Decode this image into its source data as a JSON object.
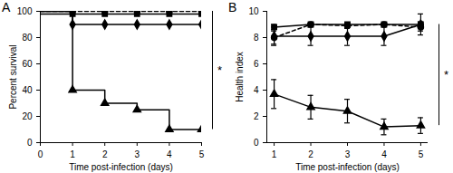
{
  "chart_data": [
    {
      "type": "step",
      "title": "A",
      "x": [
        0,
        1,
        2,
        3,
        4,
        5
      ],
      "xlim": [
        0,
        5
      ],
      "xticks": [
        0,
        1,
        2,
        3,
        4,
        5
      ],
      "ylim": [
        0,
        100
      ],
      "yticks": [
        0,
        20,
        40,
        60,
        80,
        100
      ],
      "x_label": "Time post-infection (days)",
      "y_label": "Percent survival",
      "annotations": [
        {
          "text": "*"
        }
      ],
      "series": [
        {
          "color": "#000000",
          "marker": "square",
          "line_style": "solid",
          "values": [
            98,
            98,
            98,
            98,
            98,
            98
          ]
        },
        {
          "color": "#000000",
          "marker": "circle",
          "line_style": "dashed",
          "values": [
            100,
            100,
            100,
            100,
            100,
            100
          ]
        },
        {
          "color": "#000000",
          "marker": "diamond",
          "line_style": "solid",
          "values": [
            100,
            90,
            90,
            90,
            90,
            90
          ]
        },
        {
          "color": "#000000",
          "marker": "triangle",
          "line_style": "solid",
          "values": [
            100,
            40,
            30,
            25,
            10,
            10
          ]
        }
      ]
    },
    {
      "type": "line",
      "title": "B",
      "x": [
        1,
        2,
        3,
        4,
        5
      ],
      "xlim": [
        0.8,
        5.2
      ],
      "xticks": [
        1,
        2,
        3,
        4,
        5
      ],
      "ylim": [
        0,
        10
      ],
      "yticks": [
        0,
        2,
        4,
        6,
        8,
        10
      ],
      "x_label": "Time post-infection (days)",
      "y_label": "Health index",
      "annotations": [
        {
          "text": "*"
        }
      ],
      "series": [
        {
          "color": "#000000",
          "marker": "square",
          "line_style": "solid",
          "values": [
            8.8,
            9,
            9,
            9,
            9
          ],
          "errors": [
            0.2,
            0.1,
            0.1,
            0.1,
            0.2
          ]
        },
        {
          "color": "#000000",
          "marker": "circle",
          "line_style": "dashed",
          "values": [
            8,
            9,
            8.9,
            9,
            8.8
          ],
          "errors": [
            0.5,
            0.1,
            0.2,
            0.1,
            0.3
          ]
        },
        {
          "color": "#000000",
          "marker": "diamond",
          "line_style": "solid",
          "values": [
            8.1,
            8.1,
            8.1,
            8.1,
            9
          ],
          "errors": [
            0.7,
            0.7,
            0.7,
            0.7,
            0.8
          ]
        },
        {
          "color": "#000000",
          "marker": "triangle",
          "line_style": "solid",
          "values": [
            3.7,
            2.7,
            2.4,
            1.2,
            1.3
          ],
          "errors": [
            1.1,
            0.9,
            0.9,
            0.6,
            0.6
          ]
        }
      ]
    }
  ]
}
